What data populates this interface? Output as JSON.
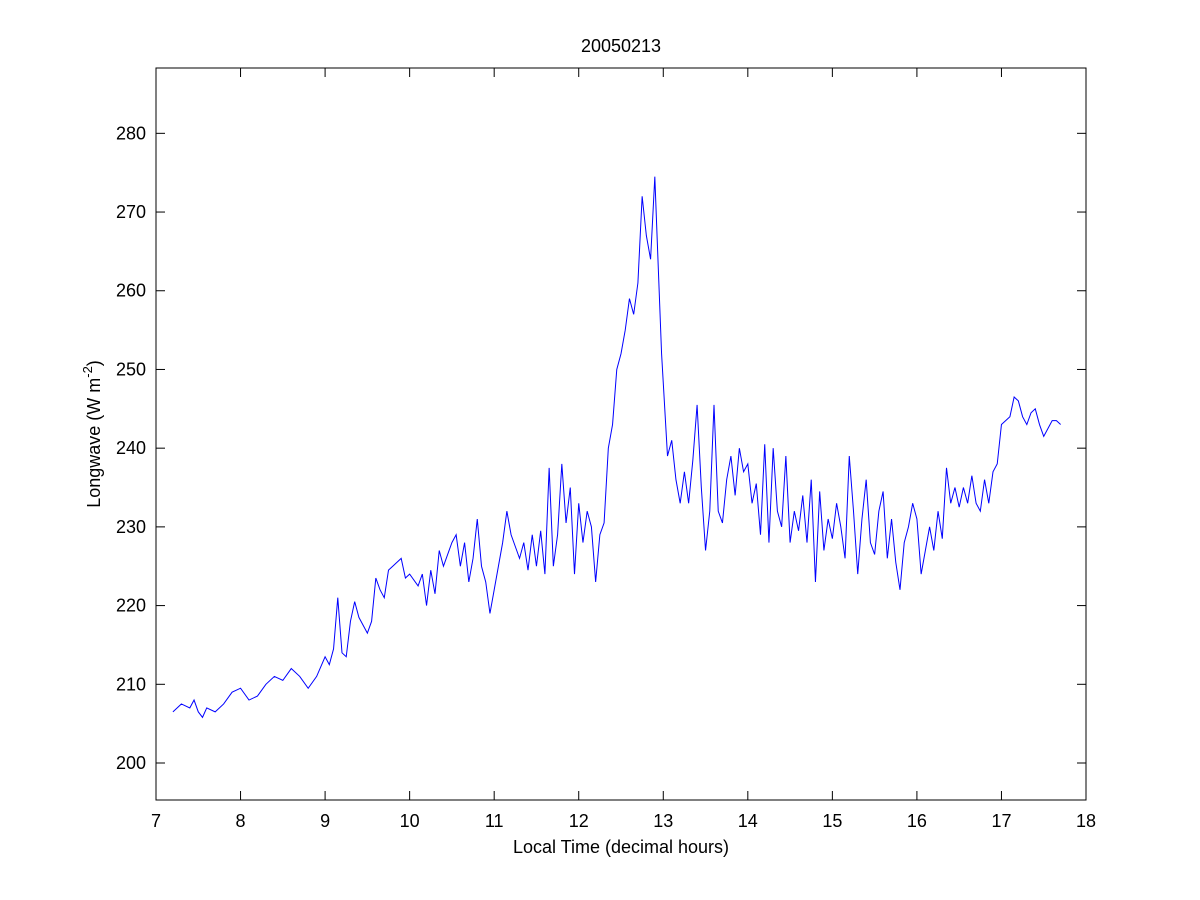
{
  "chart_data": {
    "type": "line",
    "title": "20050213",
    "xlabel": "Local Time (decimal hours)",
    "ylabel": [
      "Longwave (W m",
      "-2",
      ")"
    ],
    "xlim": [
      7,
      18
    ],
    "ylim": [
      195.3,
      288.3
    ],
    "xticks": [
      7,
      8,
      9,
      10,
      11,
      12,
      13,
      14,
      15,
      16,
      17,
      18
    ],
    "yticks": [
      200,
      210,
      220,
      230,
      240,
      250,
      260,
      270,
      280
    ],
    "grid": false,
    "x": [
      7.2,
      7.3,
      7.4,
      7.45,
      7.5,
      7.55,
      7.6,
      7.7,
      7.8,
      7.9,
      8.0,
      8.1,
      8.2,
      8.3,
      8.4,
      8.5,
      8.6,
      8.7,
      8.8,
      8.9,
      9.0,
      9.05,
      9.1,
      9.15,
      9.2,
      9.25,
      9.3,
      9.35,
      9.4,
      9.5,
      9.55,
      9.6,
      9.65,
      9.7,
      9.75,
      9.8,
      9.9,
      9.95,
      10.0,
      10.1,
      10.15,
      10.2,
      10.25,
      10.3,
      10.35,
      10.4,
      10.5,
      10.55,
      10.6,
      10.65,
      10.7,
      10.75,
      10.8,
      10.85,
      10.9,
      10.95,
      11.0,
      11.05,
      11.1,
      11.15,
      11.2,
      11.3,
      11.35,
      11.4,
      11.45,
      11.5,
      11.55,
      11.6,
      11.65,
      11.7,
      11.75,
      11.8,
      11.85,
      11.9,
      11.95,
      12.0,
      12.05,
      12.1,
      12.15,
      12.2,
      12.25,
      12.3,
      12.35,
      12.4,
      12.45,
      12.5,
      12.55,
      12.6,
      12.65,
      12.7,
      12.75,
      12.8,
      12.85,
      12.9,
      12.93,
      12.98,
      13.05,
      13.1,
      13.15,
      13.2,
      13.25,
      13.3,
      13.35,
      13.4,
      13.45,
      13.5,
      13.55,
      13.6,
      13.65,
      13.7,
      13.75,
      13.8,
      13.85,
      13.9,
      13.95,
      14.0,
      14.05,
      14.1,
      14.15,
      14.2,
      14.25,
      14.3,
      14.35,
      14.4,
      14.45,
      14.5,
      14.55,
      14.6,
      14.65,
      14.7,
      14.75,
      14.8,
      14.85,
      14.9,
      14.95,
      15.0,
      15.05,
      15.1,
      15.15,
      15.2,
      15.25,
      15.3,
      15.35,
      15.4,
      15.45,
      15.5,
      15.55,
      15.6,
      15.65,
      15.7,
      15.75,
      15.8,
      15.85,
      15.9,
      15.95,
      16.0,
      16.05,
      16.1,
      16.15,
      16.2,
      16.25,
      16.3,
      16.35,
      16.4,
      16.45,
      16.5,
      16.55,
      16.6,
      16.65,
      16.7,
      16.75,
      16.8,
      16.85,
      16.9,
      16.95,
      17.0,
      17.05,
      17.1,
      17.15,
      17.2,
      17.25,
      17.3,
      17.35,
      17.4,
      17.45,
      17.5,
      17.55,
      17.6,
      17.65,
      17.7
    ],
    "series": [
      {
        "color": "#0000ff",
        "values": [
          206.5,
          207.5,
          207,
          208,
          206.5,
          205.8,
          207,
          206.5,
          207.5,
          209,
          209.5,
          208,
          208.5,
          210,
          211,
          210.5,
          212,
          211,
          209.5,
          211,
          213.5,
          212.5,
          214.5,
          221,
          214,
          213.5,
          218,
          220.5,
          218.5,
          216.5,
          218,
          223.5,
          222,
          221,
          224.5,
          225,
          226,
          223.5,
          224,
          222.5,
          224,
          220,
          224.5,
          221.5,
          227,
          225,
          228,
          229,
          225,
          228,
          223,
          226,
          231,
          225,
          223,
          219,
          222,
          225,
          228,
          232,
          229,
          226,
          228,
          224.5,
          229,
          225,
          229.5,
          224,
          237.5,
          225,
          229,
          238,
          230.5,
          235,
          224,
          233,
          228,
          232,
          230,
          223,
          229,
          230.5,
          240,
          243,
          250,
          252,
          255,
          259,
          257,
          261,
          272,
          267,
          264,
          274.5,
          266,
          252,
          239,
          241,
          236,
          233,
          237,
          233,
          238.5,
          245.5,
          235,
          227,
          232,
          245.5,
          232,
          230.5,
          236,
          239,
          234,
          240,
          237,
          238,
          233,
          235.5,
          229,
          240.5,
          228,
          240,
          232,
          230,
          239,
          228,
          232,
          229.5,
          234,
          228,
          236,
          223,
          234.5,
          227,
          231,
          228.5,
          233,
          230,
          226,
          239,
          232,
          224,
          231,
          236,
          228,
          226.5,
          232,
          234.5,
          226,
          231,
          225.5,
          222,
          228,
          230,
          233,
          231,
          224,
          227,
          230,
          227,
          232,
          228.5,
          237.5,
          233,
          235,
          232.5,
          235,
          233,
          236.5,
          233,
          232,
          236,
          233,
          237,
          238,
          243,
          243.5,
          244,
          246.5,
          246,
          244,
          243,
          244.5,
          245,
          243,
          241.5,
          242.5,
          243.5,
          243.5,
          243
        ]
      }
    ]
  }
}
